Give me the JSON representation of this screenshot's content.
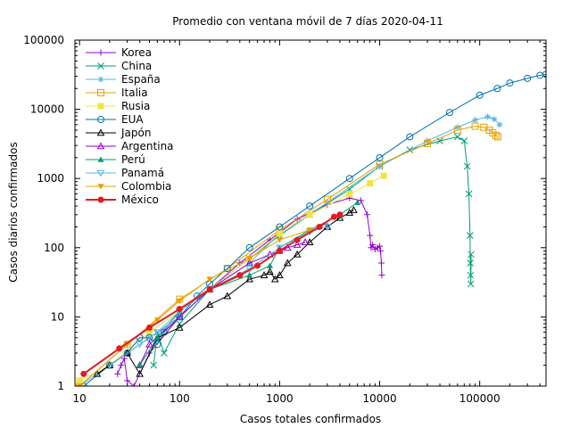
{
  "chart_data": {
    "type": "line",
    "title": "Promedio con ventana móvil de 7 días 2020-04-11",
    "xlabel": "Casos totales confirmados",
    "ylabel": "Casos diarios confirmados",
    "xscale": "log",
    "yscale": "log",
    "xlim": [
      9,
      460000
    ],
    "ylim": [
      1,
      100000
    ],
    "xticks": [
      {
        "value": 10,
        "label": "10"
      },
      {
        "value": 100,
        "label": "100"
      },
      {
        "value": 1000,
        "label": "1000"
      },
      {
        "value": 10000,
        "label": "10000"
      },
      {
        "value": 100000,
        "label": "100000"
      }
    ],
    "yticks": [
      {
        "value": 1,
        "label": "1"
      },
      {
        "value": 10,
        "label": "10"
      },
      {
        "value": 100,
        "label": "100"
      },
      {
        "value": 1000,
        "label": "1000"
      },
      {
        "value": 10000,
        "label": "10000"
      },
      {
        "value": 100000,
        "label": "100000"
      }
    ],
    "grid": false,
    "legend_position": "top-left",
    "series": [
      {
        "name": "Korea",
        "color": "#9400d3",
        "marker": "plus",
        "x": [
          24,
          26,
          28,
          30,
          35,
          50,
          100,
          200,
          400,
          800,
          1500,
          3000,
          5000,
          6500,
          7500,
          8000,
          8200,
          8500,
          9000,
          9500,
          10000,
          10200,
          10400,
          10500
        ],
        "y": [
          1.5,
          2,
          2.5,
          1.2,
          1,
          3,
          10,
          25,
          60,
          130,
          260,
          420,
          520,
          480,
          300,
          150,
          100,
          110,
          95,
          100,
          105,
          90,
          60,
          40
        ]
      },
      {
        "name": "China",
        "color": "#009e73",
        "marker": "x",
        "x": [
          55,
          60,
          70,
          100,
          200,
          500,
          1000,
          2000,
          5000,
          10000,
          20000,
          40000,
          60000,
          70000,
          75000,
          78000,
          80000,
          80500,
          81000,
          81500,
          82000
        ],
        "y": [
          2,
          6,
          3,
          8,
          25,
          70,
          150,
          300,
          700,
          1500,
          2600,
          3500,
          4000,
          3500,
          1500,
          600,
          150,
          60,
          40,
          30,
          80
        ]
      },
      {
        "name": "España",
        "color": "#56b4e9",
        "marker": "asterisk",
        "x": [
          10,
          30,
          50,
          100,
          200,
          500,
          1000,
          3000,
          10000,
          30000,
          60000,
          90000,
          120000,
          140000,
          158000
        ],
        "y": [
          1,
          3,
          5,
          10,
          25,
          60,
          160,
          450,
          1500,
          3500,
          5500,
          7000,
          7800,
          7200,
          6000
        ]
      },
      {
        "name": "Italia",
        "color": "#e69f00",
        "marker": "square",
        "x": [
          10,
          30,
          100,
          300,
          1000,
          3000,
          10000,
          30000,
          60000,
          90000,
          110000,
          125000,
          135000,
          145000,
          152000
        ],
        "y": [
          1,
          4,
          18,
          50,
          180,
          500,
          1600,
          3200,
          5000,
          5700,
          5500,
          5000,
          4600,
          4200,
          4000
        ]
      },
      {
        "name": "Rusia",
        "color": "#f0e442",
        "marker": "square-filled",
        "x": [
          10,
          20,
          50,
          100,
          200,
          500,
          1000,
          2000,
          5000,
          8000,
          11000
        ],
        "y": [
          1.2,
          2,
          6,
          12,
          25,
          70,
          160,
          300,
          600,
          850,
          1100
        ]
      },
      {
        "name": "EUA",
        "color": "#0072b2",
        "marker": "circle",
        "x": [
          11,
          20,
          30,
          40,
          50,
          60,
          70,
          100,
          150,
          200,
          300,
          500,
          1000,
          2000,
          5000,
          10000,
          20000,
          50000,
          100000,
          150000,
          200000,
          300000,
          400000,
          460000
        ],
        "y": [
          1,
          2,
          3,
          5,
          5,
          4,
          6,
          10,
          20,
          30,
          50,
          100,
          200,
          400,
          1000,
          2000,
          4000,
          9000,
          16000,
          20000,
          24000,
          28000,
          31000,
          32000
        ]
      },
      {
        "name": "Japón",
        "color": "#000000",
        "marker": "triangle",
        "x": [
          15,
          20,
          30,
          40,
          60,
          100,
          200,
          300,
          500,
          700,
          800,
          900,
          1000,
          1200,
          1500,
          2000,
          3000,
          4000,
          5000,
          5500
        ],
        "y": [
          1.5,
          2,
          3,
          1.5,
          5,
          7,
          15,
          20,
          35,
          40,
          45,
          35,
          40,
          60,
          80,
          120,
          200,
          270,
          320,
          350
        ]
      },
      {
        "name": "Argentina",
        "color": "#9400d3",
        "marker": "triangle",
        "x": [
          40,
          50,
          100,
          200,
          500,
          800,
          1000,
          1200,
          1500,
          1800
        ],
        "y": [
          2,
          4,
          10,
          25,
          60,
          80,
          90,
          100,
          110,
          120
        ]
      },
      {
        "name": "Perú",
        "color": "#009e73",
        "marker": "triangle-filled",
        "x": [
          40,
          60,
          100,
          200,
          500,
          800,
          1000,
          2000,
          4000,
          6000
        ],
        "y": [
          2,
          5,
          12,
          25,
          40,
          55,
          100,
          180,
          300,
          450
        ]
      },
      {
        "name": "Panamá",
        "color": "#56b4e9",
        "marker": "triangle-down",
        "x": [
          20,
          40,
          60,
          100,
          200,
          500,
          1000,
          2000,
          3000
        ],
        "y": [
          2,
          4,
          6,
          12,
          25,
          50,
          100,
          170,
          200
        ]
      },
      {
        "name": "Colombia",
        "color": "#e69f00",
        "marker": "triangle-down-filled",
        "x": [
          10,
          30,
          60,
          100,
          200,
          500,
          1000,
          2000
        ],
        "y": [
          1,
          4,
          9,
          17,
          35,
          70,
          130,
          180
        ]
      },
      {
        "name": "México",
        "color": "#e41a1c",
        "marker": "circle-filled",
        "x": [
          11,
          25,
          50,
          100,
          200,
          400,
          600,
          1000,
          1500,
          2500,
          3500,
          4000
        ],
        "y": [
          1.5,
          3.5,
          7,
          13,
          25,
          40,
          55,
          90,
          130,
          200,
          280,
          300
        ]
      }
    ]
  }
}
